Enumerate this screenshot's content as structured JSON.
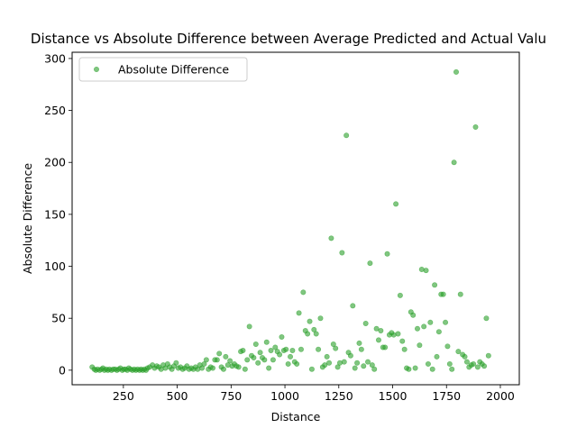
{
  "chart_data": {
    "type": "scatter",
    "title": "Distance vs Absolute Difference between Average Predicted and Actual Valu",
    "xlabel": "Distance",
    "ylabel": "Absolute Difference",
    "xlim": [
      12,
      2088
    ],
    "ylim": [
      -14,
      306
    ],
    "xticks": [
      250,
      500,
      750,
      1000,
      1250,
      1500,
      1750,
      2000
    ],
    "yticks": [
      0,
      50,
      100,
      150,
      200,
      250,
      300
    ],
    "grid": false,
    "legend_position": "top-left",
    "series": [
      {
        "name": "Absolute Difference",
        "color": "#2ca02c",
        "alpha": 0.6,
        "marker": "circle",
        "points": [
          [
            105,
            3
          ],
          [
            115,
            1
          ],
          [
            122,
            0
          ],
          [
            130,
            1
          ],
          [
            140,
            0
          ],
          [
            148,
            1
          ],
          [
            155,
            2
          ],
          [
            162,
            0
          ],
          [
            170,
            1
          ],
          [
            178,
            0
          ],
          [
            185,
            1
          ],
          [
            195,
            0
          ],
          [
            203,
            1
          ],
          [
            212,
            1
          ],
          [
            220,
            0
          ],
          [
            228,
            1
          ],
          [
            236,
            2
          ],
          [
            245,
            0
          ],
          [
            252,
            1
          ],
          [
            260,
            1
          ],
          [
            268,
            0
          ],
          [
            275,
            2
          ],
          [
            283,
            1
          ],
          [
            292,
            0
          ],
          [
            300,
            1
          ],
          [
            308,
            0
          ],
          [
            316,
            1
          ],
          [
            325,
            0
          ],
          [
            332,
            1
          ],
          [
            340,
            0
          ],
          [
            348,
            1
          ],
          [
            355,
            0
          ],
          [
            362,
            2
          ],
          [
            372,
            3
          ],
          [
            385,
            5
          ],
          [
            395,
            2
          ],
          [
            405,
            4
          ],
          [
            415,
            3
          ],
          [
            425,
            1
          ],
          [
            435,
            5
          ],
          [
            445,
            2
          ],
          [
            455,
            6
          ],
          [
            465,
            3
          ],
          [
            475,
            1
          ],
          [
            485,
            4
          ],
          [
            495,
            7
          ],
          [
            505,
            2
          ],
          [
            515,
            3
          ],
          [
            525,
            1
          ],
          [
            535,
            2
          ],
          [
            545,
            4
          ],
          [
            555,
            1
          ],
          [
            565,
            2
          ],
          [
            575,
            1
          ],
          [
            585,
            3
          ],
          [
            595,
            1
          ],
          [
            605,
            5
          ],
          [
            615,
            2
          ],
          [
            625,
            6
          ],
          [
            635,
            10
          ],
          [
            645,
            1
          ],
          [
            655,
            3
          ],
          [
            665,
            2
          ],
          [
            675,
            10
          ],
          [
            685,
            10
          ],
          [
            695,
            16
          ],
          [
            705,
            3
          ],
          [
            715,
            1
          ],
          [
            725,
            13
          ],
          [
            735,
            5
          ],
          [
            745,
            9
          ],
          [
            755,
            4
          ],
          [
            765,
            6
          ],
          [
            775,
            4
          ],
          [
            785,
            3
          ],
          [
            795,
            18
          ],
          [
            805,
            19
          ],
          [
            815,
            1
          ],
          [
            825,
            10
          ],
          [
            835,
            42
          ],
          [
            845,
            14
          ],
          [
            855,
            12
          ],
          [
            865,
            25
          ],
          [
            875,
            7
          ],
          [
            885,
            17
          ],
          [
            895,
            12
          ],
          [
            905,
            10
          ],
          [
            915,
            27
          ],
          [
            925,
            2
          ],
          [
            935,
            19
          ],
          [
            945,
            10
          ],
          [
            955,
            22
          ],
          [
            965,
            18
          ],
          [
            975,
            15
          ],
          [
            985,
            32
          ],
          [
            995,
            19
          ],
          [
            1005,
            20
          ],
          [
            1015,
            6
          ],
          [
            1025,
            13
          ],
          [
            1035,
            19
          ],
          [
            1045,
            8
          ],
          [
            1055,
            6
          ],
          [
            1065,
            55
          ],
          [
            1075,
            20
          ],
          [
            1085,
            75
          ],
          [
            1095,
            38
          ],
          [
            1105,
            35
          ],
          [
            1115,
            47
          ],
          [
            1125,
            1
          ],
          [
            1135,
            39
          ],
          [
            1145,
            35
          ],
          [
            1155,
            20
          ],
          [
            1165,
            50
          ],
          [
            1175,
            3
          ],
          [
            1185,
            5
          ],
          [
            1195,
            13
          ],
          [
            1205,
            7
          ],
          [
            1215,
            127
          ],
          [
            1225,
            25
          ],
          [
            1235,
            21
          ],
          [
            1245,
            3
          ],
          [
            1255,
            7
          ],
          [
            1265,
            113
          ],
          [
            1275,
            8
          ],
          [
            1285,
            226
          ],
          [
            1295,
            17
          ],
          [
            1305,
            14
          ],
          [
            1315,
            62
          ],
          [
            1325,
            2
          ],
          [
            1335,
            7
          ],
          [
            1345,
            26
          ],
          [
            1355,
            20
          ],
          [
            1365,
            4
          ],
          [
            1375,
            45
          ],
          [
            1385,
            8
          ],
          [
            1395,
            103
          ],
          [
            1405,
            5
          ],
          [
            1415,
            1
          ],
          [
            1425,
            40
          ],
          [
            1435,
            29
          ],
          [
            1445,
            38
          ],
          [
            1455,
            22
          ],
          [
            1465,
            22
          ],
          [
            1475,
            112
          ],
          [
            1485,
            34
          ],
          [
            1495,
            36
          ],
          [
            1505,
            34
          ],
          [
            1515,
            160
          ],
          [
            1525,
            35
          ],
          [
            1535,
            72
          ],
          [
            1545,
            28
          ],
          [
            1555,
            20
          ],
          [
            1565,
            2
          ],
          [
            1575,
            1
          ],
          [
            1585,
            56
          ],
          [
            1595,
            53
          ],
          [
            1605,
            2
          ],
          [
            1615,
            40
          ],
          [
            1625,
            24
          ],
          [
            1635,
            97
          ],
          [
            1645,
            42
          ],
          [
            1655,
            96
          ],
          [
            1665,
            6
          ],
          [
            1675,
            46
          ],
          [
            1685,
            1
          ],
          [
            1695,
            82
          ],
          [
            1705,
            13
          ],
          [
            1715,
            37
          ],
          [
            1725,
            73
          ],
          [
            1735,
            73
          ],
          [
            1745,
            46
          ],
          [
            1755,
            23
          ],
          [
            1765,
            6
          ],
          [
            1775,
            1
          ],
          [
            1785,
            200
          ],
          [
            1795,
            287
          ],
          [
            1805,
            18
          ],
          [
            1815,
            73
          ],
          [
            1825,
            15
          ],
          [
            1835,
            13
          ],
          [
            1845,
            8
          ],
          [
            1855,
            3
          ],
          [
            1865,
            5
          ],
          [
            1875,
            6
          ],
          [
            1885,
            234
          ],
          [
            1895,
            3
          ],
          [
            1905,
            8
          ],
          [
            1915,
            6
          ],
          [
            1925,
            4
          ],
          [
            1935,
            50
          ],
          [
            1945,
            14
          ]
        ]
      }
    ]
  }
}
